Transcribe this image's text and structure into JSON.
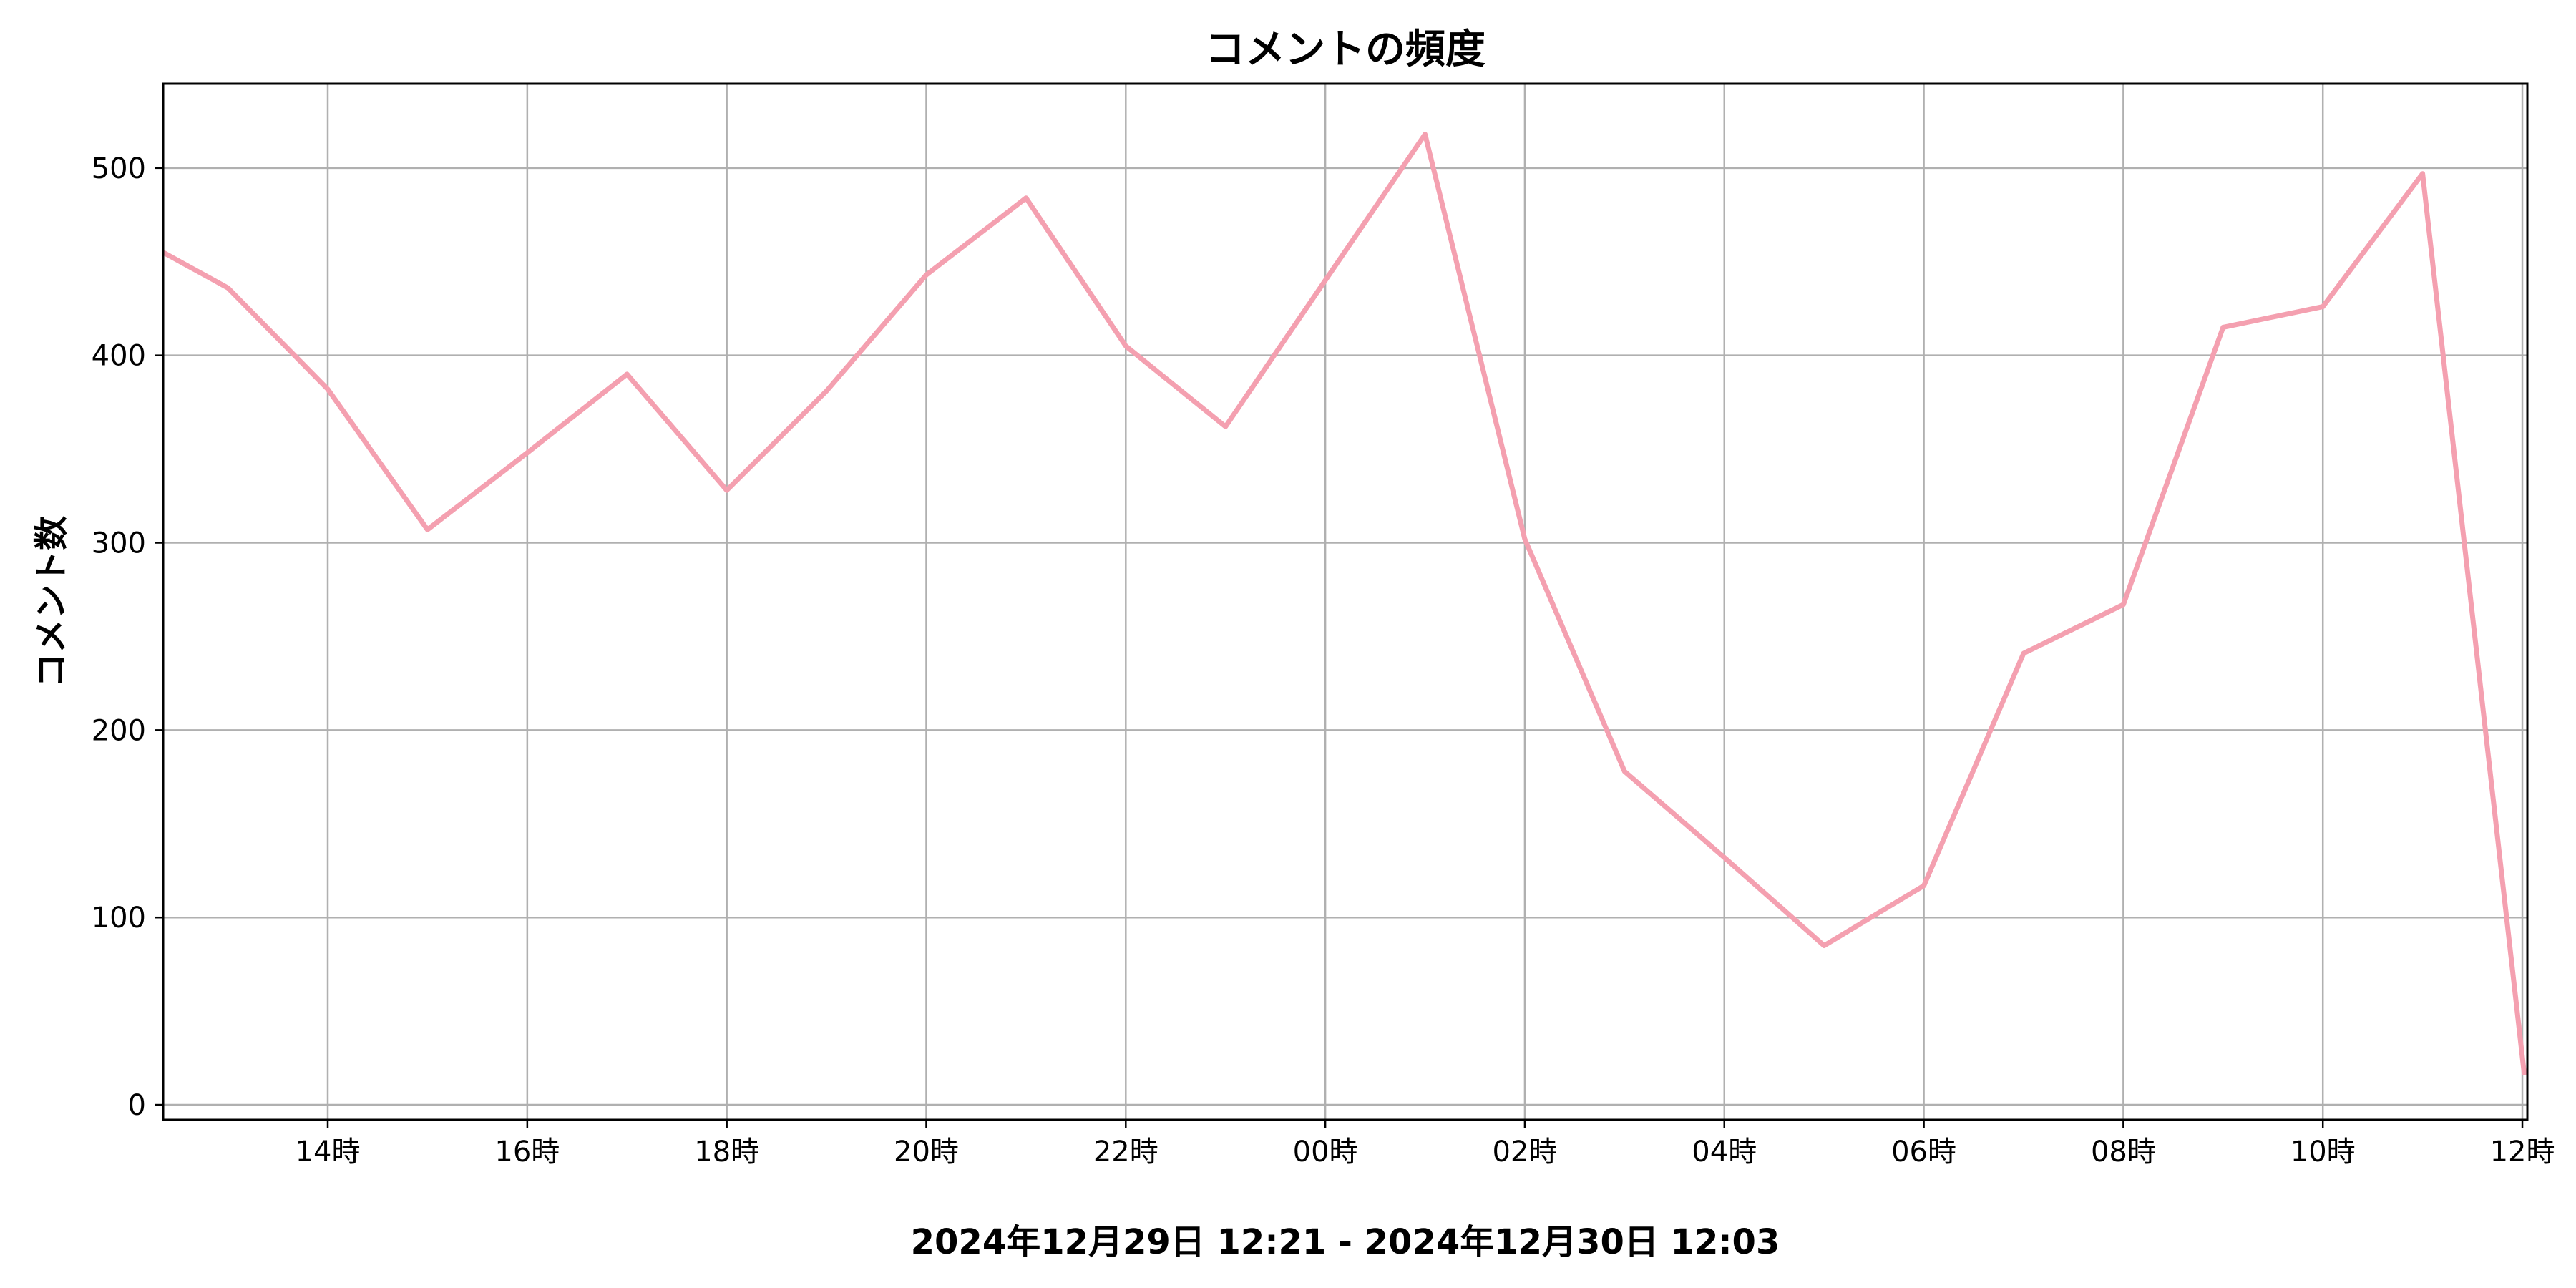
{
  "chart_data": {
    "type": "line",
    "title": "コメントの頻度",
    "xlabel": "2024年12月29日 12:21 - 2024年12月30日 12:03",
    "ylabel": "コメント数",
    "x_tick_labels": [
      "14時",
      "16時",
      "18時",
      "20時",
      "22時",
      "00時",
      "02時",
      "04時",
      "06時",
      "08時",
      "10時",
      "12時"
    ],
    "x_tick_hours": [
      14,
      16,
      18,
      20,
      22,
      24,
      26,
      28,
      30,
      32,
      34,
      36
    ],
    "xlim_hours": [
      12.35,
      36.05
    ],
    "y_ticks": [
      0,
      100,
      200,
      300,
      400,
      500
    ],
    "ylim": [
      -8,
      545
    ],
    "grid": true,
    "series": [
      {
        "color": "#f4a0b0",
        "x_hours": [
          12.35,
          13,
          14,
          15,
          16,
          17,
          18,
          19,
          20,
          21,
          22,
          23,
          24,
          25,
          26,
          27,
          28,
          29,
          30,
          31,
          32,
          33,
          34,
          35,
          36.02
        ],
        "values": [
          455,
          436,
          382,
          307,
          348,
          390,
          328,
          381,
          443,
          484,
          405,
          362,
          440,
          518,
          302,
          178,
          132,
          85,
          117,
          241,
          267,
          415,
          426,
          497,
          16
        ]
      }
    ]
  }
}
